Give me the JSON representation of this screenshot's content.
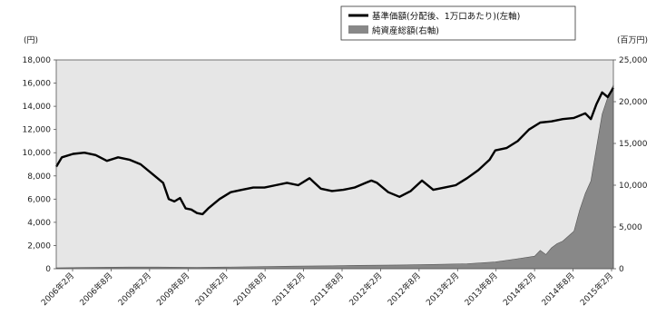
{
  "chart_data": {
    "type": "line",
    "y_left_unit": "(円)",
    "y_right_unit": "(百万円)",
    "y_left_ticks": [
      "0",
      "2,000",
      "4,000",
      "6,000",
      "8,000",
      "10,000",
      "12,000",
      "14,000",
      "16,000",
      "18,000"
    ],
    "y_right_ticks": [
      "0",
      "5,000",
      "10,000",
      "15,000",
      "20,000",
      "25,000"
    ],
    "y_left_range": [
      0,
      18000
    ],
    "y_right_range": [
      0,
      25000
    ],
    "x_tick_labels": [
      "2006年2月",
      "2006年8月",
      "2009年2月",
      "2009年8月",
      "2010年2月",
      "2010年8月",
      "2011年2月",
      "2011年8月",
      "2012年2月",
      "2012年8月",
      "2013年2月",
      "2013年8月",
      "2014年2月",
      "2014年8月",
      "2015年2月"
    ],
    "x_range": [
      "2006-12",
      "2015-03"
    ],
    "grid": false,
    "legend_position": "top-right",
    "series": [
      {
        "name": "基準価額(分配後、1万口あたり)(左軸)",
        "axis": "left",
        "style": "line",
        "color": "#000000",
        "x": [
          "2006-12",
          "2007-01",
          "2007-03",
          "2007-05",
          "2007-07",
          "2007-09",
          "2007-11",
          "2008-01",
          "2008-03",
          "2008-05",
          "2008-07",
          "2008-08",
          "2008-09",
          "2008-10",
          "2008-11",
          "2008-12",
          "2009-01",
          "2009-02",
          "2009-03",
          "2009-05",
          "2009-07",
          "2009-09",
          "2009-11",
          "2010-01",
          "2010-03",
          "2010-05",
          "2010-07",
          "2010-09",
          "2010-11",
          "2011-01",
          "2011-03",
          "2011-05",
          "2011-07",
          "2011-08",
          "2011-09",
          "2011-11",
          "2012-01",
          "2012-03",
          "2012-05",
          "2012-07",
          "2012-09",
          "2012-11",
          "2013-01",
          "2013-03",
          "2013-05",
          "2013-06",
          "2013-08",
          "2013-10",
          "2013-12",
          "2014-02",
          "2014-04",
          "2014-06",
          "2014-08",
          "2014-10",
          "2014-11",
          "2014-12",
          "2015-01",
          "2015-02",
          "2015-03"
        ],
        "y": [
          8800,
          9600,
          9900,
          10000,
          9800,
          9300,
          9600,
          9400,
          9000,
          8200,
          7400,
          6000,
          5800,
          6100,
          5200,
          5100,
          4800,
          4700,
          5200,
          6000,
          6600,
          6800,
          7000,
          7000,
          7200,
          7400,
          7200,
          7800,
          6900,
          6700,
          6800,
          7000,
          7400,
          7600,
          7400,
          6600,
          6200,
          6700,
          7600,
          6800,
          7000,
          7200,
          7800,
          8500,
          9400,
          10200,
          10400,
          11000,
          12000,
          12600,
          12700,
          12900,
          13000,
          13400,
          12900,
          14200,
          15200,
          14800,
          15600
        ]
      },
      {
        "name": "純資産総額(右軸)",
        "axis": "right",
        "style": "area",
        "color": "#888888",
        "x": [
          "2006-12",
          "2007-06",
          "2008-01",
          "2008-06",
          "2009-01",
          "2009-06",
          "2010-01",
          "2010-06",
          "2011-01",
          "2011-06",
          "2012-01",
          "2012-06",
          "2013-01",
          "2013-06",
          "2013-10",
          "2014-01",
          "2014-02",
          "2014-03",
          "2014-04",
          "2014-05",
          "2014-06",
          "2014-08",
          "2014-09",
          "2014-10",
          "2014-11",
          "2014-12",
          "2015-01",
          "2015-02",
          "2015-03"
        ],
        "y": [
          100,
          150,
          200,
          200,
          150,
          200,
          250,
          300,
          350,
          400,
          450,
          500,
          600,
          800,
          1200,
          1500,
          2200,
          1700,
          2500,
          3000,
          3300,
          4500,
          7000,
          9000,
          10500,
          14500,
          18500,
          20500,
          22000
        ]
      }
    ]
  }
}
